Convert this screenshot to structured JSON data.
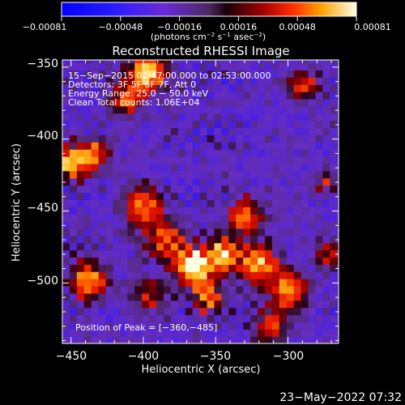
{
  "chart_data": {
    "type": "heatmap",
    "title": "Reconstructed RHESSI Image",
    "xlabel": "Heliocentric X (arcsec)",
    "ylabel": "Heliocentric Y (arcsec)",
    "xlim": [
      -456,
      -265
    ],
    "ylim": [
      -542,
      -345
    ],
    "x_ticks": [
      -450,
      -400,
      -350,
      -300
    ],
    "x_tick_labels": [
      "−450",
      "−400",
      "−350",
      "−300"
    ],
    "y_ticks": [
      -350,
      -400,
      -450,
      -500
    ],
    "y_tick_labels": [
      "−350",
      "−400",
      "−450",
      "−500"
    ],
    "colorbar": {
      "vmin": -0.00081,
      "vmax": 0.00081,
      "tick_labels": [
        "−0.00081",
        "−0.00048",
        "−0.00016",
        "0.00016",
        "0.00048",
        "0.00081"
      ],
      "unit_prefix": "(photons cm",
      "unit_sup1": "−2",
      "unit_mid": " s",
      "unit_sup2": "−1",
      "unit_mid2": " asec",
      "unit_sup3": "−2",
      "unit_suffix": ")"
    },
    "info_lines": [
      "15−Sep−2015 02:47:00.000 to 02:53:00.000",
      "Detectors: 3F 5F 6F 7F, Att 0",
      "Energy Range: 25.0 − 50.0 keV",
      "Clean     Total counts: 1.06E+04"
    ],
    "peak_text": "Position of Peak = [−360,−485]",
    "peak": [
      -360,
      -485
    ],
    "sources": [
      {
        "x": -365,
        "y": -488,
        "amplitude": 1.0,
        "sigma": 9
      },
      {
        "x": -344,
        "y": -480,
        "amplitude": 0.78,
        "sigma": 8
      },
      {
        "x": -320,
        "y": -487,
        "amplitude": 0.72,
        "sigma": 9
      },
      {
        "x": -300,
        "y": -505,
        "amplitude": 0.65,
        "sigma": 9
      },
      {
        "x": -397,
        "y": -353,
        "amplitude": 0.85,
        "sigma": 9
      },
      {
        "x": -412,
        "y": -372,
        "amplitude": 0.55,
        "sigma": 8
      },
      {
        "x": -450,
        "y": -415,
        "amplitude": 0.8,
        "sigma": 8
      },
      {
        "x": -433,
        "y": -410,
        "amplitude": 0.55,
        "sigma": 7
      },
      {
        "x": -438,
        "y": -498,
        "amplitude": 0.7,
        "sigma": 9
      },
      {
        "x": -400,
        "y": -447,
        "amplitude": 0.6,
        "sigma": 10
      },
      {
        "x": -385,
        "y": -470,
        "amplitude": 0.55,
        "sigma": 9
      },
      {
        "x": -330,
        "y": -453,
        "amplitude": 0.55,
        "sigma": 9
      },
      {
        "x": -313,
        "y": -530,
        "amplitude": 0.5,
        "sigma": 8
      },
      {
        "x": -290,
        "y": -362,
        "amplitude": 0.45,
        "sigma": 8
      },
      {
        "x": -355,
        "y": -510,
        "amplitude": 0.5,
        "sigma": 8
      },
      {
        "x": -272,
        "y": -480,
        "amplitude": 0.45,
        "sigma": 7
      },
      {
        "x": -395,
        "y": -508,
        "amplitude": 0.4,
        "sigma": 8
      },
      {
        "x": -275,
        "y": -430,
        "amplitude": 0.35,
        "sigma": 6
      }
    ],
    "colors": {
      "negative": "#0000ff",
      "mid": "#5a3a9a",
      "positive_high": "#ffffd8",
      "positive_low": "#ff0000"
    }
  },
  "footer": {
    "date": "23−May−2022 07:32"
  }
}
